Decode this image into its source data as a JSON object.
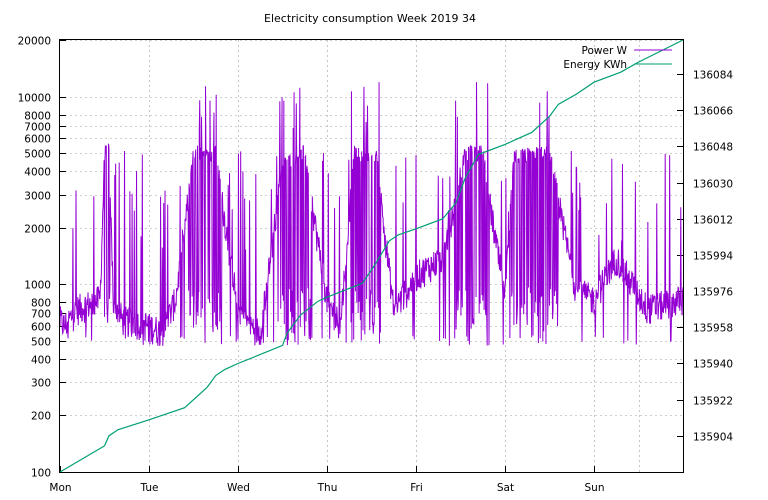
{
  "chart_data": {
    "type": "line",
    "title": "Electricity consumption Week 2019 34",
    "xlabel": "",
    "ylabel": "",
    "y2label": "",
    "x_ticks": [
      "Mon",
      "Tue",
      "Wed",
      "Thu",
      "Fri",
      "Sat",
      "Sun"
    ],
    "x_range_days": [
      0,
      7
    ],
    "y_scale": "log",
    "ylim": [
      100,
      20000
    ],
    "y_ticks": [
      100,
      200,
      300,
      400,
      500,
      600,
      700,
      800,
      1000,
      2000,
      3000,
      4000,
      5000,
      6000,
      7000,
      8000,
      10000,
      20000
    ],
    "y2lim": [
      135886,
      136101
    ],
    "y2_ticks": [
      135904,
      135922,
      135940,
      135958,
      135976,
      135994,
      136012,
      136030,
      136048,
      136066,
      136084
    ],
    "grid": true,
    "legend_position": "top-right",
    "series": [
      {
        "name": "Power W",
        "axis": "y",
        "color": "#9400d3",
        "profile_days": [
          0,
          0.05,
          0.2,
          0.45,
          0.5,
          0.55,
          0.6,
          0.7,
          1.0,
          1.15,
          1.3,
          1.5,
          1.75,
          2.0,
          2.15,
          2.25,
          2.5,
          2.75,
          3.0,
          3.15,
          3.3,
          3.55,
          3.75,
          3.9,
          4.0,
          4.3,
          4.55,
          4.75,
          5.0,
          5.1,
          5.5,
          5.8,
          6.0,
          6.25,
          6.6,
          7.0
        ],
        "profile_watts": [
          700,
          650,
          800,
          900,
          5000,
          5200,
          900,
          700,
          650,
          600,
          900,
          5000,
          5000,
          800,
          650,
          600,
          4500,
          5000,
          900,
          650,
          5000,
          5000,
          800,
          1000,
          1200,
          1500,
          5000,
          5000,
          900,
          4800,
          5000,
          1000,
          900,
          1500,
          800,
          900
        ],
        "peak_watts": 12000,
        "min_watts": 470
      },
      {
        "name": "Energy KWh",
        "axis": "y2",
        "color": "#009e73",
        "x_days": [
          0,
          0.5,
          0.55,
          0.65,
          1.0,
          1.4,
          1.55,
          1.65,
          1.75,
          1.85,
          2.0,
          2.5,
          2.55,
          2.7,
          2.9,
          3.0,
          3.4,
          3.55,
          3.7,
          3.8,
          4.0,
          4.3,
          4.45,
          4.55,
          4.7,
          5.0,
          5.15,
          5.3,
          5.5,
          5.6,
          5.8,
          6.0,
          6.3,
          6.5,
          7.0
        ],
        "y_kwh": [
          135886,
          135899,
          135904,
          135907,
          135912,
          135918,
          135924,
          135928,
          135934,
          135937,
          135940,
          135949,
          135955,
          135964,
          135971,
          135973,
          135980,
          135990,
          136001,
          136004,
          136007,
          136012,
          136020,
          136032,
          136044,
          136049,
          136052,
          136055,
          136063,
          136069,
          136074,
          136080,
          136085,
          136090,
          136101
        ]
      }
    ]
  }
}
